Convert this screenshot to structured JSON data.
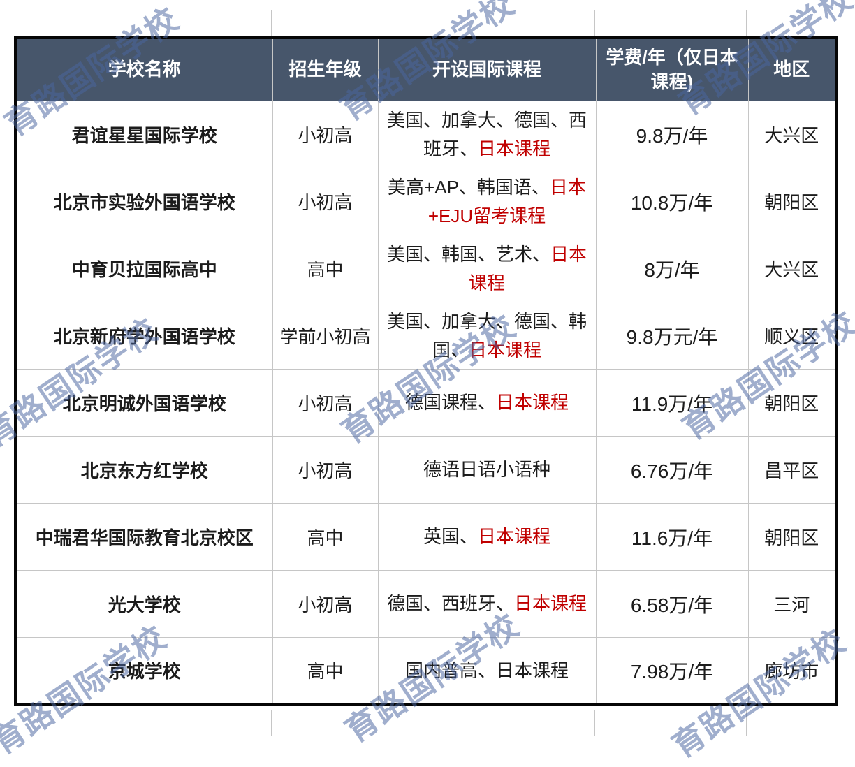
{
  "watermark": {
    "text": "育路国际学校"
  },
  "colors": {
    "header_bg": "#47566B",
    "course_highlight_red": "#C00000",
    "watermark_blue": "#4a66a0"
  },
  "table": {
    "columns": [
      "学校名称",
      "招生年级",
      "开设国际课程",
      "学费/年（仅日本课程)",
      "地区"
    ],
    "rows": [
      {
        "name": "君谊星星国际学校",
        "grade": "小初高",
        "courses": [
          {
            "t": "美国、加拿大、德国、西班牙、",
            "red": false
          },
          {
            "t": "日本课程",
            "red": true
          }
        ],
        "tuition": "9.8万/年",
        "region": "大兴区"
      },
      {
        "name": "北京市实验外国语学校",
        "grade": "小初高",
        "courses": [
          {
            "t": "美高+AP、韩国语、",
            "red": false
          },
          {
            "t": "日本+EJU留考课程",
            "red": true
          }
        ],
        "tuition": "10.8万/年",
        "region": "朝阳区"
      },
      {
        "name": "中育贝拉国际高中",
        "grade": "高中",
        "courses": [
          {
            "t": "美国、韩国、艺术、",
            "red": false
          },
          {
            "t": "日本课程",
            "red": true
          }
        ],
        "tuition": "8万/年",
        "region": "大兴区"
      },
      {
        "name": "北京新府学外国语学校",
        "grade": "学前小初高",
        "courses": [
          {
            "t": "美国、加拿大、德国、韩国、",
            "red": false
          },
          {
            "t": "日本课程",
            "red": true
          }
        ],
        "tuition": "9.8万元/年",
        "region": "顺义区"
      },
      {
        "name": "北京明诚外国语学校",
        "grade": "小初高",
        "courses": [
          {
            "t": "德国课程、",
            "red": false
          },
          {
            "t": "日本课程",
            "red": true
          }
        ],
        "tuition": "11.9万/年",
        "region": "朝阳区"
      },
      {
        "name": "北京东方红学校",
        "grade": "小初高",
        "courses": [
          {
            "t": "德语日语小语种",
            "red": false
          }
        ],
        "tuition": "6.76万/年",
        "region": "昌平区"
      },
      {
        "name": "中瑞君华国际教育北京校区",
        "grade": "高中",
        "courses": [
          {
            "t": "英国、",
            "red": false
          },
          {
            "t": "日本课程",
            "red": true
          }
        ],
        "tuition": "11.6万/年",
        "region": "朝阳区"
      },
      {
        "name": "光大学校",
        "grade": "小初高",
        "courses": [
          {
            "t": "德国、西班牙、",
            "red": false
          },
          {
            "t": "日本课程",
            "red": true
          }
        ],
        "tuition": "6.58万/年",
        "region": "三河"
      },
      {
        "name": "京城学校",
        "grade": "高中",
        "courses": [
          {
            "t": "国内普高、日本课程",
            "red": false
          }
        ],
        "tuition": "7.98万/年",
        "region": "廊坊市"
      }
    ]
  }
}
